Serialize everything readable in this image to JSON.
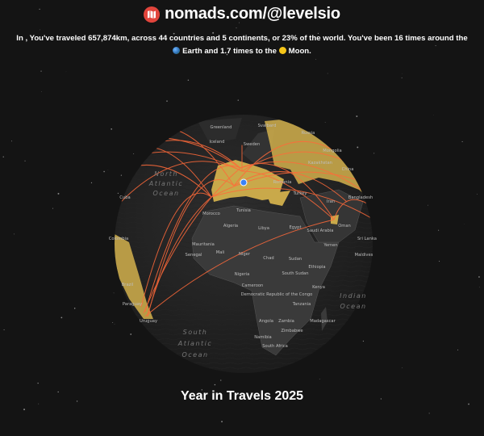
{
  "header": {
    "logo_icon": "nomads-map-icon",
    "site": "nomads.com/@levelsio",
    "brand_color": "#e2453c"
  },
  "summary": {
    "line1": "In , You've traveled 657,874km, across 44 countries and 5 continents, or 23% of the world. You've been 16 times around the",
    "earth_icon": "earth-globe-icon",
    "line2_a": "Earth and 1.7 times to the",
    "moon_icon": "moon-icon",
    "line2_b": "Moon."
  },
  "map": {
    "visited_color": "#c9a94a",
    "route_color": "#ff6a3a",
    "current_location_color": "#3b82f6",
    "labels": [
      "Greenland",
      "Svalbard",
      "Iceland",
      "Sweden",
      "Russia",
      "Mongolia",
      "Kazakhstan",
      "China",
      "Cuba",
      "Morocco",
      "Tunisia",
      "Algeria",
      "Libya",
      "Egypt",
      "Turkey",
      "Iran",
      "Saudi Arabia",
      "Oman",
      "Bangladesh",
      "Sri Lanka",
      "Maldives",
      "Yemen",
      "Colombia",
      "Mauritania",
      "Senegal",
      "Mali",
      "Niger",
      "Chad",
      "Sudan",
      "South Sudan",
      "Ethiopia",
      "Nigeria",
      "Cameroon",
      "Kenya",
      "Democratic Republic of the Congo",
      "Tanzania",
      "Brazil",
      "Paraguay",
      "Uruguay",
      "Angola",
      "Zambia",
      "Zimbabwe",
      "Madagascar",
      "Namibia",
      "South Africa",
      "Romania"
    ],
    "oceans": {
      "north_atlantic": [
        "North",
        "Atlantic",
        "Ocean"
      ],
      "south_atlantic": [
        "South",
        "Atlantic",
        "Ocean"
      ],
      "indian": [
        "Indian",
        "Ocean"
      ]
    }
  },
  "footer": {
    "title": "Year in Travels 2025"
  }
}
